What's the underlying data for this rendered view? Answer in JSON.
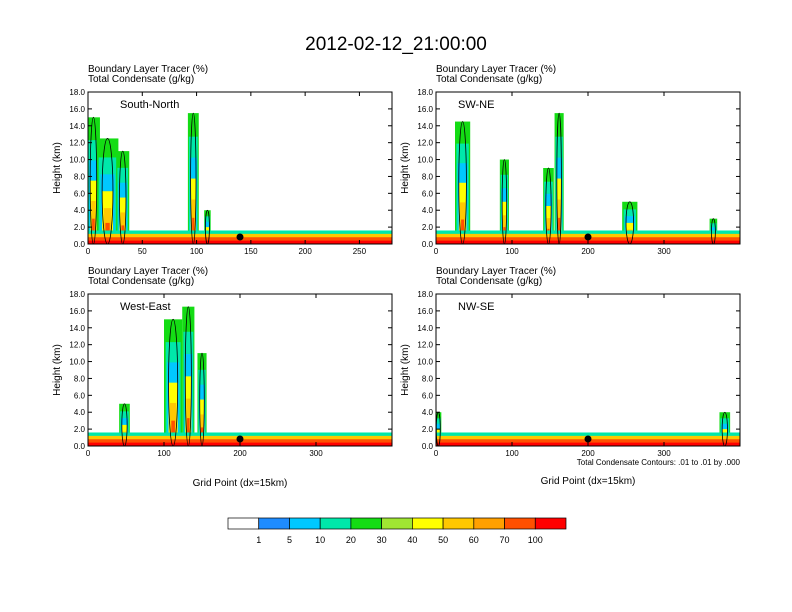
{
  "title": "2012-02-12_21:00:00",
  "panel_titles": [
    "Boundary Layer Tracer   (%)",
    "Total Condensate   (g/kg)"
  ],
  "y_axis_label": "Height (km)",
  "x_axis_label": "Grid Point (dx=15km)",
  "footnote": "Total Condensate Contours: .01 to .01 by .000",
  "contour_label": ".01",
  "colorbar": {
    "levels": [
      "1",
      "5",
      "10",
      "20",
      "30",
      "40",
      "50",
      "60",
      "70",
      "100"
    ],
    "colors": [
      "#ffffff",
      "#1e8cff",
      "#00c8ff",
      "#00e8aa",
      "#14dc14",
      "#a0e632",
      "#ffff00",
      "#ffc800",
      "#ffa000",
      "#ff5000",
      "#ff0000"
    ]
  },
  "chart_data": [
    {
      "type": "heatmap",
      "label": "South-North",
      "xlim": [
        0,
        280
      ],
      "ylim": [
        0,
        18
      ],
      "xticks": [
        0,
        50,
        100,
        150,
        200,
        250
      ],
      "yticks": [
        "0.0",
        "2.0",
        "4.0",
        "6.0",
        "8.0",
        "10.0",
        "12.0",
        "14.0",
        "16.0",
        "18.0"
      ],
      "tracer_columns": [
        {
          "x": 5,
          "width": 12,
          "top_km": 15
        },
        {
          "x": 18,
          "width": 20,
          "top_km": 12.5
        },
        {
          "x": 32,
          "width": 12,
          "top_km": 11
        },
        {
          "x": 97,
          "width": 10,
          "top_km": 15.5
        },
        {
          "x": 110,
          "width": 6,
          "top_km": 4
        }
      ],
      "surface_site_x": 140
    },
    {
      "type": "heatmap",
      "label": "SW-NE",
      "xlim": [
        0,
        400
      ],
      "ylim": [
        0,
        18
      ],
      "xticks": [
        0,
        100,
        200,
        300
      ],
      "yticks": [
        "0.0",
        "2.0",
        "4.0",
        "6.0",
        "8.0",
        "10.0",
        "12.0",
        "14.0",
        "16.0",
        "18.0"
      ],
      "tracer_columns": [
        {
          "x": 35,
          "width": 20,
          "top_km": 14.5
        },
        {
          "x": 90,
          "width": 12,
          "top_km": 10
        },
        {
          "x": 148,
          "width": 14,
          "top_km": 9
        },
        {
          "x": 162,
          "width": 12,
          "top_km": 15.5
        },
        {
          "x": 255,
          "width": 20,
          "top_km": 5
        },
        {
          "x": 365,
          "width": 10,
          "top_km": 3
        }
      ],
      "surface_site_x": 200
    },
    {
      "type": "heatmap",
      "label": "West-East",
      "xlim": [
        0,
        400
      ],
      "ylim": [
        0,
        18
      ],
      "xticks": [
        0,
        100,
        200,
        300
      ],
      "yticks": [
        "0.0",
        "2.0",
        "4.0",
        "6.0",
        "8.0",
        "10.0",
        "12.0",
        "14.0",
        "16.0",
        "18.0"
      ],
      "tracer_columns": [
        {
          "x": 48,
          "width": 14,
          "top_km": 5
        },
        {
          "x": 112,
          "width": 24,
          "top_km": 15
        },
        {
          "x": 132,
          "width": 16,
          "top_km": 16.5
        },
        {
          "x": 150,
          "width": 12,
          "top_km": 11
        }
      ],
      "surface_site_x": 200
    },
    {
      "type": "heatmap",
      "label": "NW-SE",
      "xlim": [
        0,
        400
      ],
      "ylim": [
        0,
        18
      ],
      "xticks": [
        0,
        100,
        200,
        300
      ],
      "yticks": [
        "0.0",
        "2.0",
        "4.0",
        "6.0",
        "8.0",
        "10.0",
        "12.0",
        "14.0",
        "16.0",
        "18.0"
      ],
      "tracer_columns": [
        {
          "x": 3,
          "width": 8,
          "top_km": 4
        },
        {
          "x": 380,
          "width": 14,
          "top_km": 4
        }
      ],
      "surface_site_x": 200
    }
  ]
}
